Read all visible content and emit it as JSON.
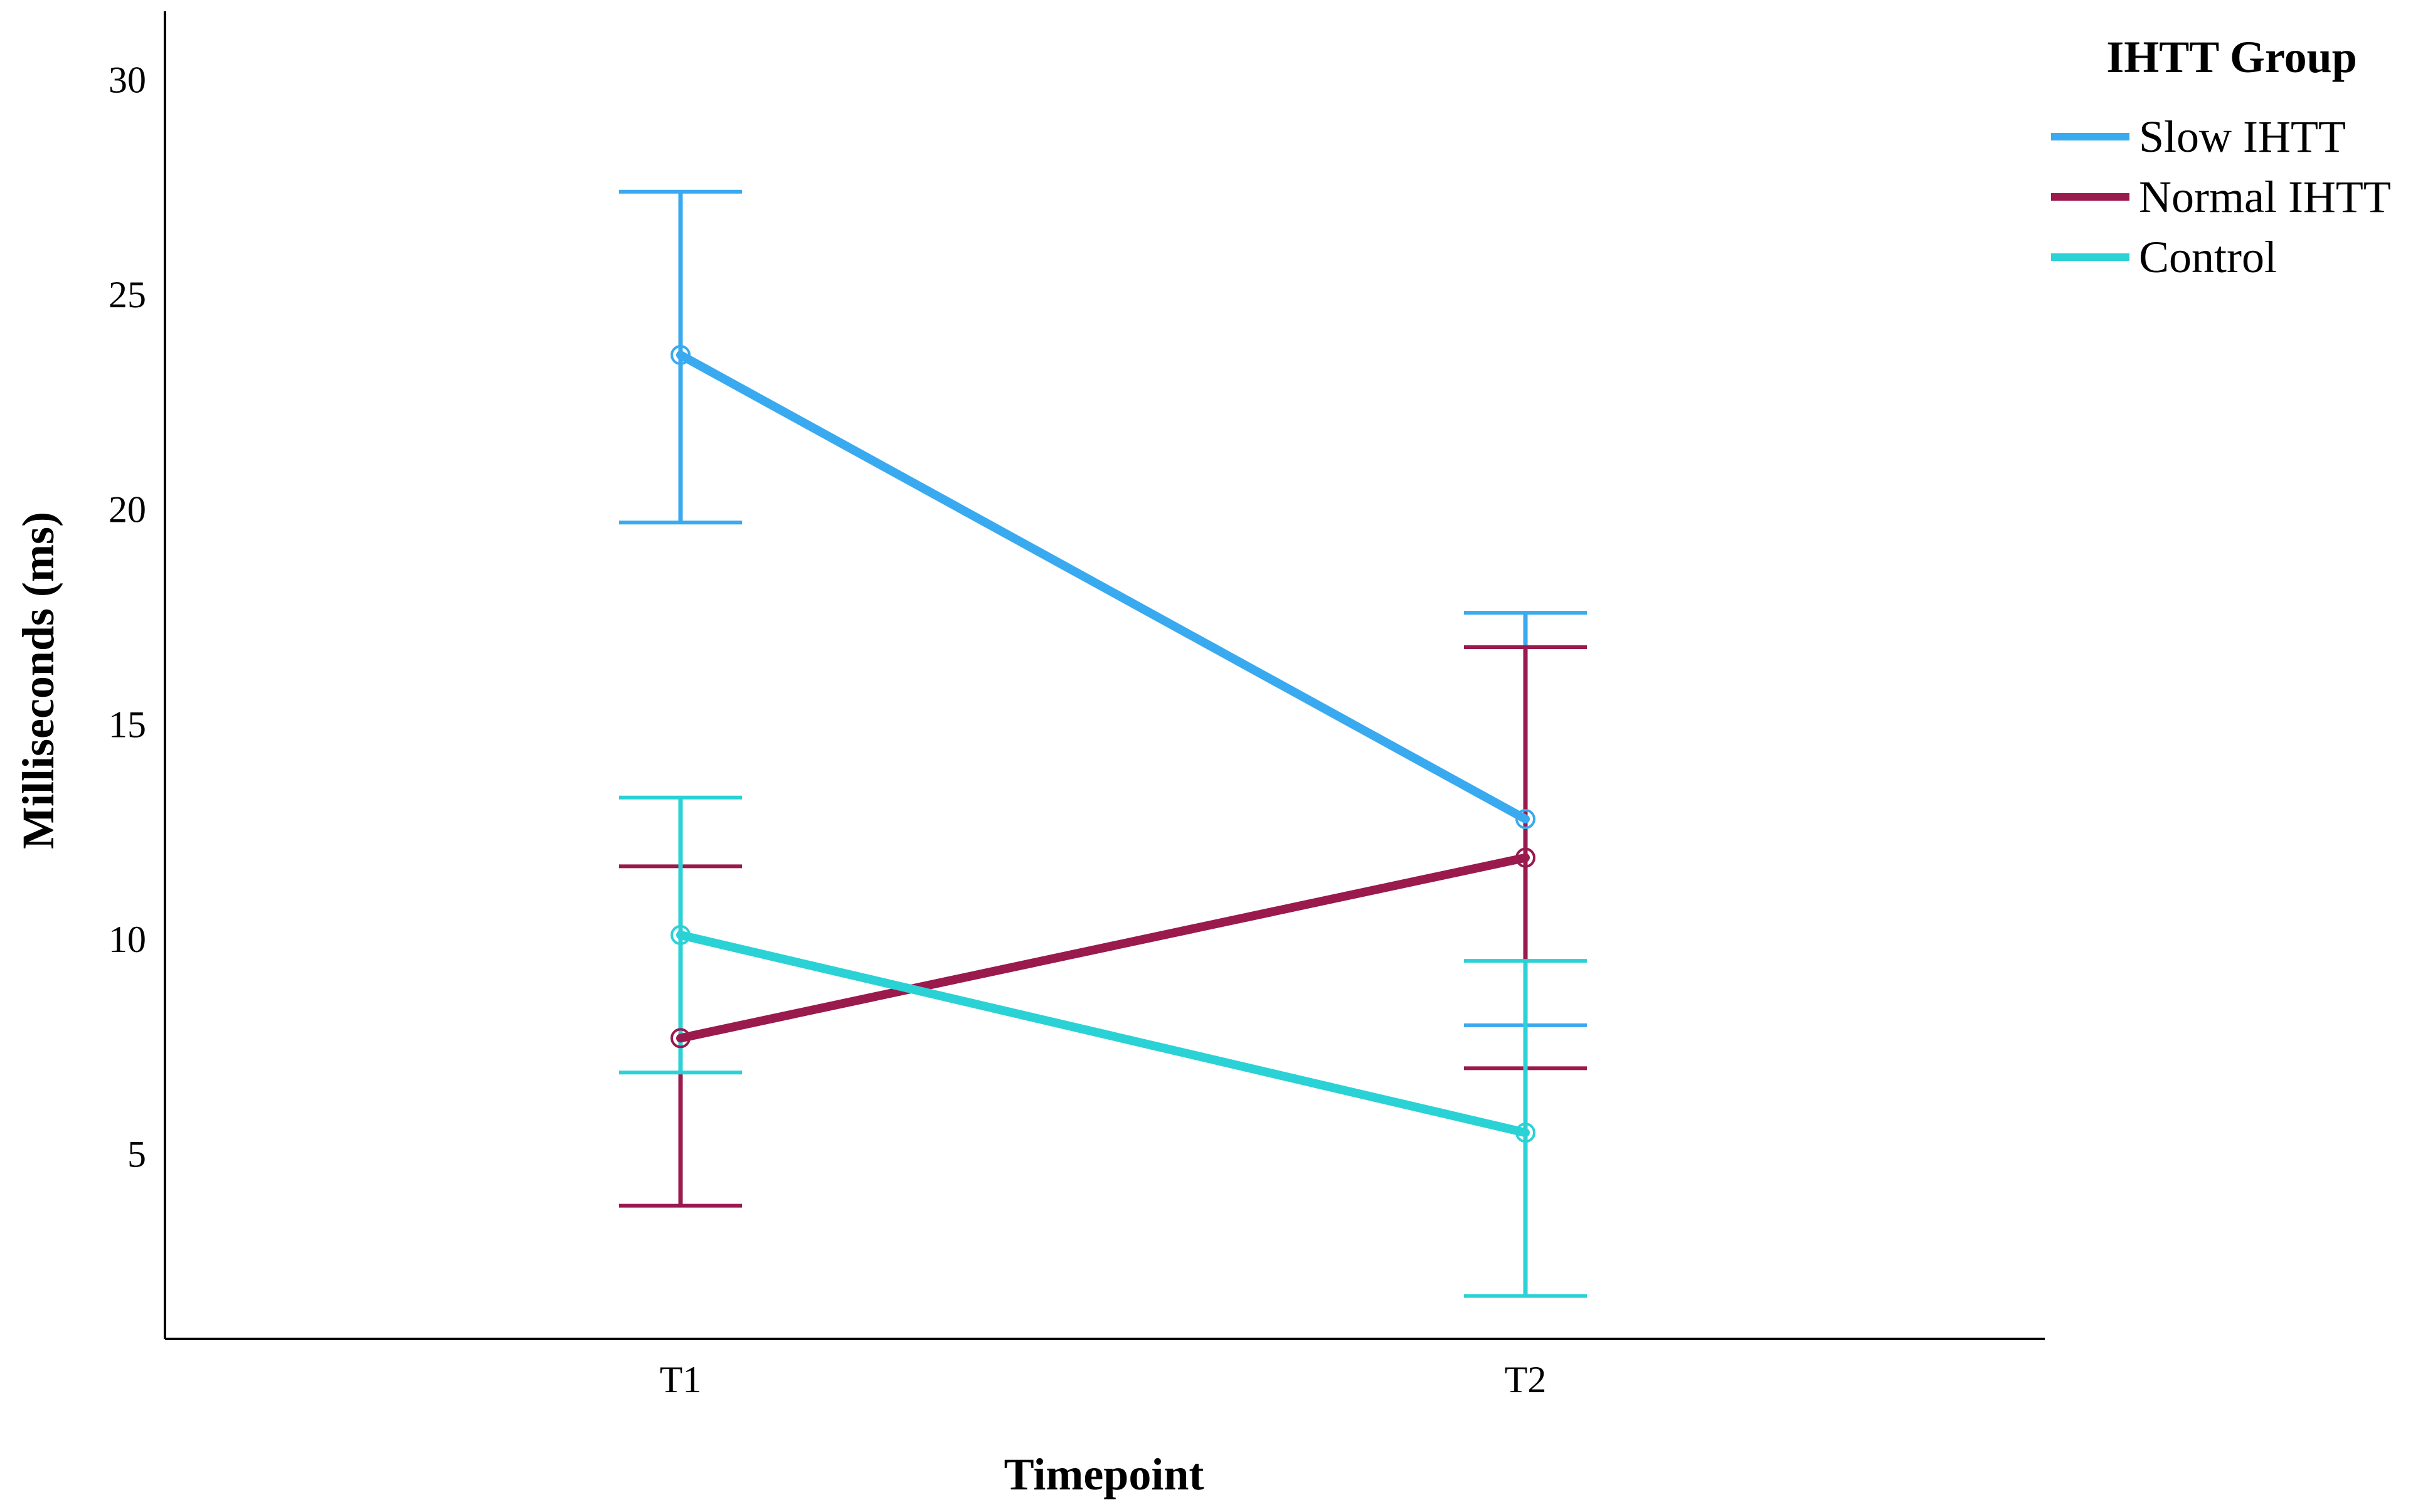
{
  "chart_data": {
    "type": "line",
    "title": "",
    "xlabel": "Timepoint",
    "ylabel": "Milliseconds (ms)",
    "categories": [
      "T1",
      "T2"
    ],
    "yticks": [
      5,
      10,
      15,
      20,
      25,
      30
    ],
    "ylim": [
      0.7,
      31.6
    ],
    "grid": false,
    "legend": {
      "title": "IHTT Group",
      "position": "top-right"
    },
    "error_bars": true,
    "series": [
      {
        "name": "Slow IHTT",
        "color": "#3aaaf0",
        "values": [
          23.6,
          12.8
        ],
        "error_low": [
          19.7,
          8.0
        ],
        "error_high": [
          27.4,
          17.6
        ]
      },
      {
        "name": "Normal IHTT",
        "color": "#9a1a4e",
        "values": [
          7.7,
          11.9
        ],
        "error_low": [
          3.8,
          7.0
        ],
        "error_high": [
          11.7,
          16.8
        ]
      },
      {
        "name": "Control",
        "color": "#2ad2d6",
        "values": [
          10.1,
          5.5
        ],
        "error_low": [
          6.9,
          1.7
        ],
        "error_high": [
          13.3,
          9.5
        ]
      }
    ]
  }
}
